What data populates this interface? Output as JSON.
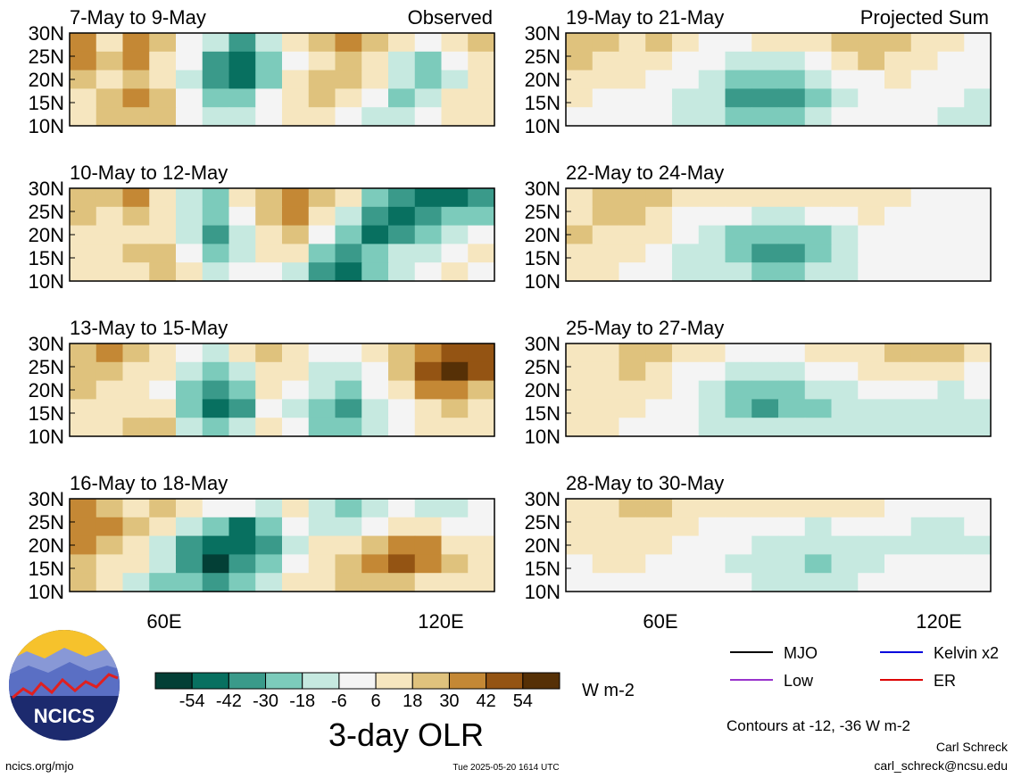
{
  "figure_title": "3-day OLR",
  "colorbar": {
    "tick_labels": [
      "-54",
      "-42",
      "-30",
      "-18",
      "-6",
      "6",
      "18",
      "30",
      "42",
      "54"
    ],
    "unit": "W m-2",
    "colors": [
      "#033f36",
      "#087060",
      "#3a9a8a",
      "#7ccbbb",
      "#c6e9e0",
      "#f4f4f4",
      "#f6e6bf",
      "#dfc27d",
      "#c48835",
      "#945413",
      "#563006"
    ]
  },
  "legend": {
    "mjo": "MJO",
    "kelvin": "Kelvin x2",
    "low": "Low",
    "er": "ER",
    "colors": {
      "mjo": "#000000",
      "kelvin": "#0000dd",
      "low": "#9933cc",
      "er": "#dd0000"
    }
  },
  "contour_note": "Contours at -12, -36 W m-2",
  "logo": {
    "text": "NCICS"
  },
  "footer": {
    "url": "ncics.org/mjo",
    "timestamp": "Tue 2025-05-20 1614 UTC",
    "author": "Carl Schreck",
    "email": "carl_schreck@ncsu.edu"
  },
  "chart_data": {
    "type": "heatmap",
    "variable": "3-day OLR",
    "unit": "W m-2",
    "x_ticks": [
      "60E",
      "120E"
    ],
    "y_ticks": [
      "30N",
      "25N",
      "20N",
      "15N",
      "10N"
    ],
    "xlim": [
      40,
      130
    ],
    "ylim": [
      10,
      30
    ],
    "column_labels": [
      "Observed",
      "Projected Sum"
    ],
    "panels": [
      {
        "period": "7-May to 9-May",
        "kind": "observed",
        "cells": [
          [
            30,
            12,
            40,
            26,
            5,
            -18,
            -42,
            -18,
            8,
            22,
            30,
            18,
            6,
            -6,
            10,
            18
          ],
          [
            34,
            20,
            30,
            14,
            -6,
            -34,
            -54,
            -30,
            4,
            14,
            24,
            10,
            -12,
            -22,
            4,
            12
          ],
          [
            26,
            16,
            22,
            8,
            -10,
            -40,
            -46,
            -20,
            6,
            18,
            28,
            6,
            -18,
            -30,
            -8,
            6
          ],
          [
            14,
            22,
            30,
            20,
            2,
            -22,
            -26,
            -6,
            12,
            24,
            16,
            -4,
            -24,
            -12,
            8,
            14
          ],
          [
            8,
            18,
            24,
            26,
            -4,
            -10,
            -14,
            0,
            14,
            8,
            -6,
            -16,
            -10,
            4,
            12,
            6
          ]
        ]
      },
      {
        "period": "10-May to 12-May",
        "kind": "observed",
        "cells": [
          [
            24,
            18,
            30,
            16,
            -8,
            -20,
            10,
            22,
            34,
            28,
            6,
            -22,
            -34,
            -44,
            -54,
            -36
          ],
          [
            20,
            12,
            22,
            10,
            -12,
            -30,
            -6,
            18,
            30,
            14,
            -16,
            -40,
            -52,
            -38,
            -30,
            -20
          ],
          [
            16,
            8,
            14,
            6,
            -18,
            -34,
            -18,
            10,
            22,
            2,
            -30,
            -46,
            -34,
            -22,
            -10,
            -6
          ],
          [
            12,
            14,
            20,
            18,
            -4,
            -22,
            -14,
            6,
            8,
            -20,
            -42,
            -30,
            -16,
            -8,
            4,
            6
          ],
          [
            6,
            10,
            16,
            22,
            8,
            -8,
            -4,
            4,
            -10,
            -32,
            -54,
            -22,
            -8,
            2,
            8,
            4
          ]
        ]
      },
      {
        "period": "13-May to 15-May",
        "kind": "observed",
        "cells": [
          [
            20,
            30,
            22,
            14,
            4,
            -8,
            12,
            20,
            16,
            4,
            -6,
            10,
            24,
            38,
            52,
            46
          ],
          [
            26,
            22,
            16,
            8,
            -14,
            -26,
            -12,
            14,
            10,
            -8,
            -12,
            4,
            20,
            42,
            56,
            44
          ],
          [
            22,
            16,
            10,
            2,
            -20,
            -42,
            -30,
            6,
            -2,
            -18,
            -24,
            -6,
            14,
            30,
            34,
            24
          ],
          [
            14,
            10,
            16,
            12,
            -26,
            -54,
            -36,
            0,
            -14,
            -30,
            -32,
            -16,
            4,
            14,
            18,
            10
          ],
          [
            8,
            12,
            18,
            20,
            -8,
            -30,
            -18,
            6,
            -4,
            -22,
            -26,
            -10,
            2,
            8,
            10,
            6
          ]
        ]
      },
      {
        "period": "16-May to 18-May",
        "kind": "observed",
        "cells": [
          [
            36,
            28,
            14,
            22,
            16,
            4,
            -6,
            -10,
            6,
            -16,
            -20,
            -12,
            -6,
            -8,
            -10,
            -6
          ],
          [
            40,
            30,
            18,
            10,
            -16,
            -30,
            -44,
            -24,
            2,
            -8,
            -14,
            4,
            12,
            8,
            -4,
            2
          ],
          [
            34,
            22,
            10,
            -8,
            -36,
            -54,
            -50,
            -32,
            -10,
            6,
            10,
            22,
            38,
            30,
            14,
            10
          ],
          [
            26,
            14,
            6,
            -14,
            -40,
            -56,
            -42,
            -24,
            -6,
            12,
            20,
            30,
            42,
            34,
            20,
            12
          ],
          [
            18,
            10,
            -12,
            -20,
            -26,
            -36,
            -22,
            -8,
            6,
            16,
            24,
            18,
            20,
            14,
            8,
            6
          ]
        ]
      },
      {
        "period": "19-May to 21-May",
        "kind": "projected",
        "cells": [
          [
            24,
            20,
            14,
            18,
            10,
            4,
            -2,
            6,
            12,
            16,
            20,
            24,
            22,
            14,
            6,
            2
          ],
          [
            18,
            14,
            10,
            12,
            4,
            -6,
            -14,
            -18,
            -12,
            -4,
            10,
            18,
            16,
            8,
            2,
            0
          ],
          [
            10,
            8,
            6,
            4,
            -4,
            -12,
            -22,
            -30,
            -28,
            -16,
            -6,
            4,
            6,
            2,
            -2,
            -4
          ],
          [
            6,
            4,
            2,
            -4,
            -10,
            -18,
            -32,
            -40,
            -36,
            -22,
            -10,
            -4,
            0,
            -2,
            -6,
            -8
          ],
          [
            4,
            2,
            0,
            -6,
            -10,
            -14,
            -20,
            -24,
            -22,
            -14,
            -6,
            -2,
            -2,
            -4,
            -8,
            -10
          ]
        ]
      },
      {
        "period": "22-May to 24-May",
        "kind": "projected",
        "cells": [
          [
            8,
            18,
            24,
            22,
            12,
            6,
            8,
            12,
            14,
            16,
            12,
            8,
            6,
            4,
            2,
            2
          ],
          [
            14,
            20,
            22,
            14,
            4,
            -2,
            -6,
            -8,
            -10,
            -6,
            2,
            6,
            4,
            2,
            0,
            0
          ],
          [
            18,
            16,
            12,
            6,
            -4,
            -12,
            -20,
            -26,
            -28,
            -20,
            -10,
            -4,
            -2,
            0,
            0,
            0
          ],
          [
            12,
            10,
            6,
            0,
            -8,
            -18,
            -28,
            -34,
            -32,
            -24,
            -14,
            -6,
            -4,
            -2,
            0,
            0
          ],
          [
            8,
            6,
            2,
            -2,
            -8,
            -12,
            -18,
            -22,
            -20,
            -16,
            -10,
            -6,
            -4,
            -2,
            -2,
            0
          ]
        ]
      },
      {
        "period": "25-May to 27-May",
        "kind": "projected",
        "cells": [
          [
            6,
            12,
            18,
            20,
            14,
            6,
            4,
            2,
            4,
            6,
            10,
            16,
            20,
            24,
            20,
            14
          ],
          [
            10,
            16,
            18,
            12,
            4,
            -4,
            -10,
            -16,
            -12,
            -4,
            2,
            6,
            10,
            12,
            6,
            2
          ],
          [
            12,
            14,
            12,
            6,
            -2,
            -10,
            -20,
            -30,
            -28,
            -18,
            -10,
            -6,
            -4,
            -6,
            -8,
            -6
          ],
          [
            8,
            10,
            8,
            2,
            -6,
            -14,
            -24,
            -32,
            -28,
            -20,
            -14,
            -10,
            -10,
            -12,
            -12,
            -8
          ],
          [
            6,
            6,
            4,
            0,
            -4,
            -8,
            -12,
            -16,
            -16,
            -12,
            -10,
            -10,
            -10,
            -12,
            -10,
            -8
          ]
        ]
      },
      {
        "period": "28-May to 30-May",
        "kind": "projected",
        "cells": [
          [
            10,
            16,
            24,
            20,
            12,
            8,
            6,
            8,
            10,
            12,
            10,
            6,
            4,
            2,
            0,
            0
          ],
          [
            8,
            12,
            16,
            12,
            8,
            4,
            0,
            -4,
            -6,
            -8,
            -6,
            -4,
            -6,
            -8,
            -8,
            -6
          ],
          [
            6,
            8,
            10,
            8,
            4,
            0,
            -6,
            -10,
            -14,
            -16,
            -12,
            -8,
            -8,
            -10,
            -10,
            -8
          ],
          [
            4,
            6,
            6,
            4,
            0,
            -4,
            -10,
            -14,
            -18,
            -20,
            -14,
            -8,
            -6,
            -6,
            -6,
            -4
          ],
          [
            2,
            4,
            4,
            2,
            0,
            -2,
            -6,
            -8,
            -10,
            -10,
            -8,
            -4,
            -2,
            -2,
            -2,
            -2
          ]
        ]
      }
    ]
  }
}
